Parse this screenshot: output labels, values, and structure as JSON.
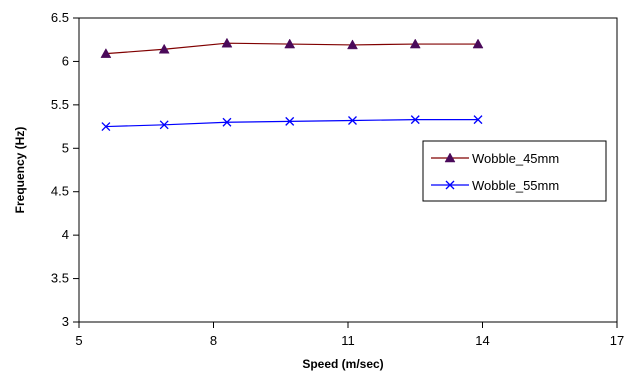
{
  "chart_data": {
    "type": "line",
    "title": "",
    "xlabel": "Speed (m/sec)",
    "ylabel": "Frequency (Hz)",
    "xlim": [
      5,
      17
    ],
    "ylim": [
      3,
      6.5
    ],
    "x_ticks": [
      "5",
      "8",
      "11",
      "14",
      "17"
    ],
    "y_ticks": [
      "3",
      "3.5",
      "4",
      "4.5",
      "5",
      "5.5",
      "6",
      "6.5"
    ],
    "grid": false,
    "legend_position": "right",
    "series": [
      {
        "name": "Wobble_45mm",
        "color": "#800000",
        "marker": "triangle",
        "marker_color": "#4b0a5a",
        "x": [
          5.6,
          6.9,
          8.3,
          9.7,
          11.1,
          12.5,
          13.9
        ],
        "y": [
          6.09,
          6.14,
          6.21,
          6.2,
          6.19,
          6.2,
          6.2
        ]
      },
      {
        "name": "Wobble_55mm",
        "color": "#0000ff",
        "marker": "x",
        "marker_color": "#0000ff",
        "x": [
          5.6,
          6.9,
          8.3,
          9.7,
          11.1,
          12.5,
          13.9
        ],
        "y": [
          5.25,
          5.27,
          5.3,
          5.31,
          5.32,
          5.33,
          5.33
        ]
      }
    ]
  }
}
